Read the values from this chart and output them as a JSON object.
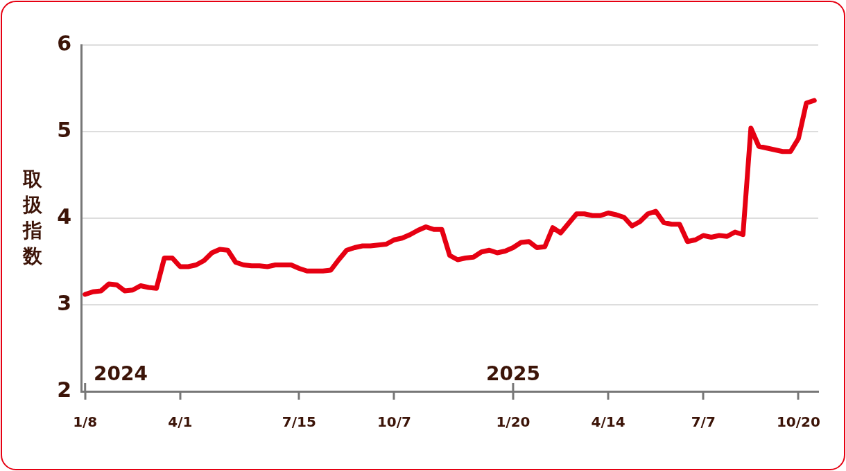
{
  "chart_data": {
    "type": "line",
    "ylabel": "取扱指数",
    "color": "#e60012",
    "categories": [
      "1/8",
      null,
      null,
      null,
      null,
      null,
      null,
      null,
      null,
      null,
      null,
      null,
      "4/1",
      null,
      null,
      null,
      null,
      null,
      null,
      null,
      null,
      null,
      null,
      null,
      null,
      null,
      null,
      "7/15",
      null,
      null,
      null,
      null,
      null,
      null,
      null,
      null,
      null,
      null,
      null,
      "10/7",
      null,
      null,
      null,
      null,
      null,
      null,
      null,
      null,
      null,
      null,
      null,
      null,
      null,
      null,
      "1/20",
      null,
      null,
      null,
      null,
      null,
      null,
      null,
      null,
      null,
      null,
      null,
      "4/14",
      null,
      null,
      null,
      null,
      null,
      null,
      null,
      null,
      null,
      null,
      null,
      "7/7",
      null,
      null,
      null,
      null,
      null,
      null,
      null,
      null,
      null,
      null,
      null,
      "10/20",
      null,
      null
    ],
    "values": [
      3.12,
      3.15,
      3.16,
      3.24,
      3.23,
      3.16,
      3.17,
      3.22,
      3.2,
      3.19,
      3.54,
      3.54,
      3.44,
      3.44,
      3.46,
      3.51,
      3.6,
      3.64,
      3.63,
      3.49,
      3.46,
      3.45,
      3.45,
      3.44,
      3.46,
      3.46,
      3.46,
      3.42,
      3.39,
      3.39,
      3.39,
      3.4,
      3.52,
      3.63,
      3.66,
      3.68,
      3.68,
      3.69,
      3.7,
      3.75,
      3.77,
      3.81,
      3.86,
      3.9,
      3.87,
      3.87,
      3.57,
      3.52,
      3.54,
      3.55,
      3.61,
      3.63,
      3.6,
      3.62,
      3.66,
      3.72,
      3.73,
      3.66,
      3.67,
      3.89,
      3.83,
      3.94,
      4.05,
      4.05,
      4.03,
      4.03,
      4.06,
      4.04,
      4.01,
      3.91,
      3.96,
      4.05,
      4.08,
      3.95,
      3.93,
      3.93,
      3.73,
      3.75,
      3.8,
      3.78,
      3.8,
      3.79,
      3.84,
      3.81,
      5.04,
      4.83,
      4.81,
      4.79,
      4.77,
      4.77,
      4.92,
      5.33,
      5.36
    ],
    "ylim": [
      2,
      6
    ],
    "yticks": [
      2,
      3,
      4,
      5,
      6
    ],
    "grid": "y",
    "annotations": [
      "2024",
      "2025"
    ]
  }
}
